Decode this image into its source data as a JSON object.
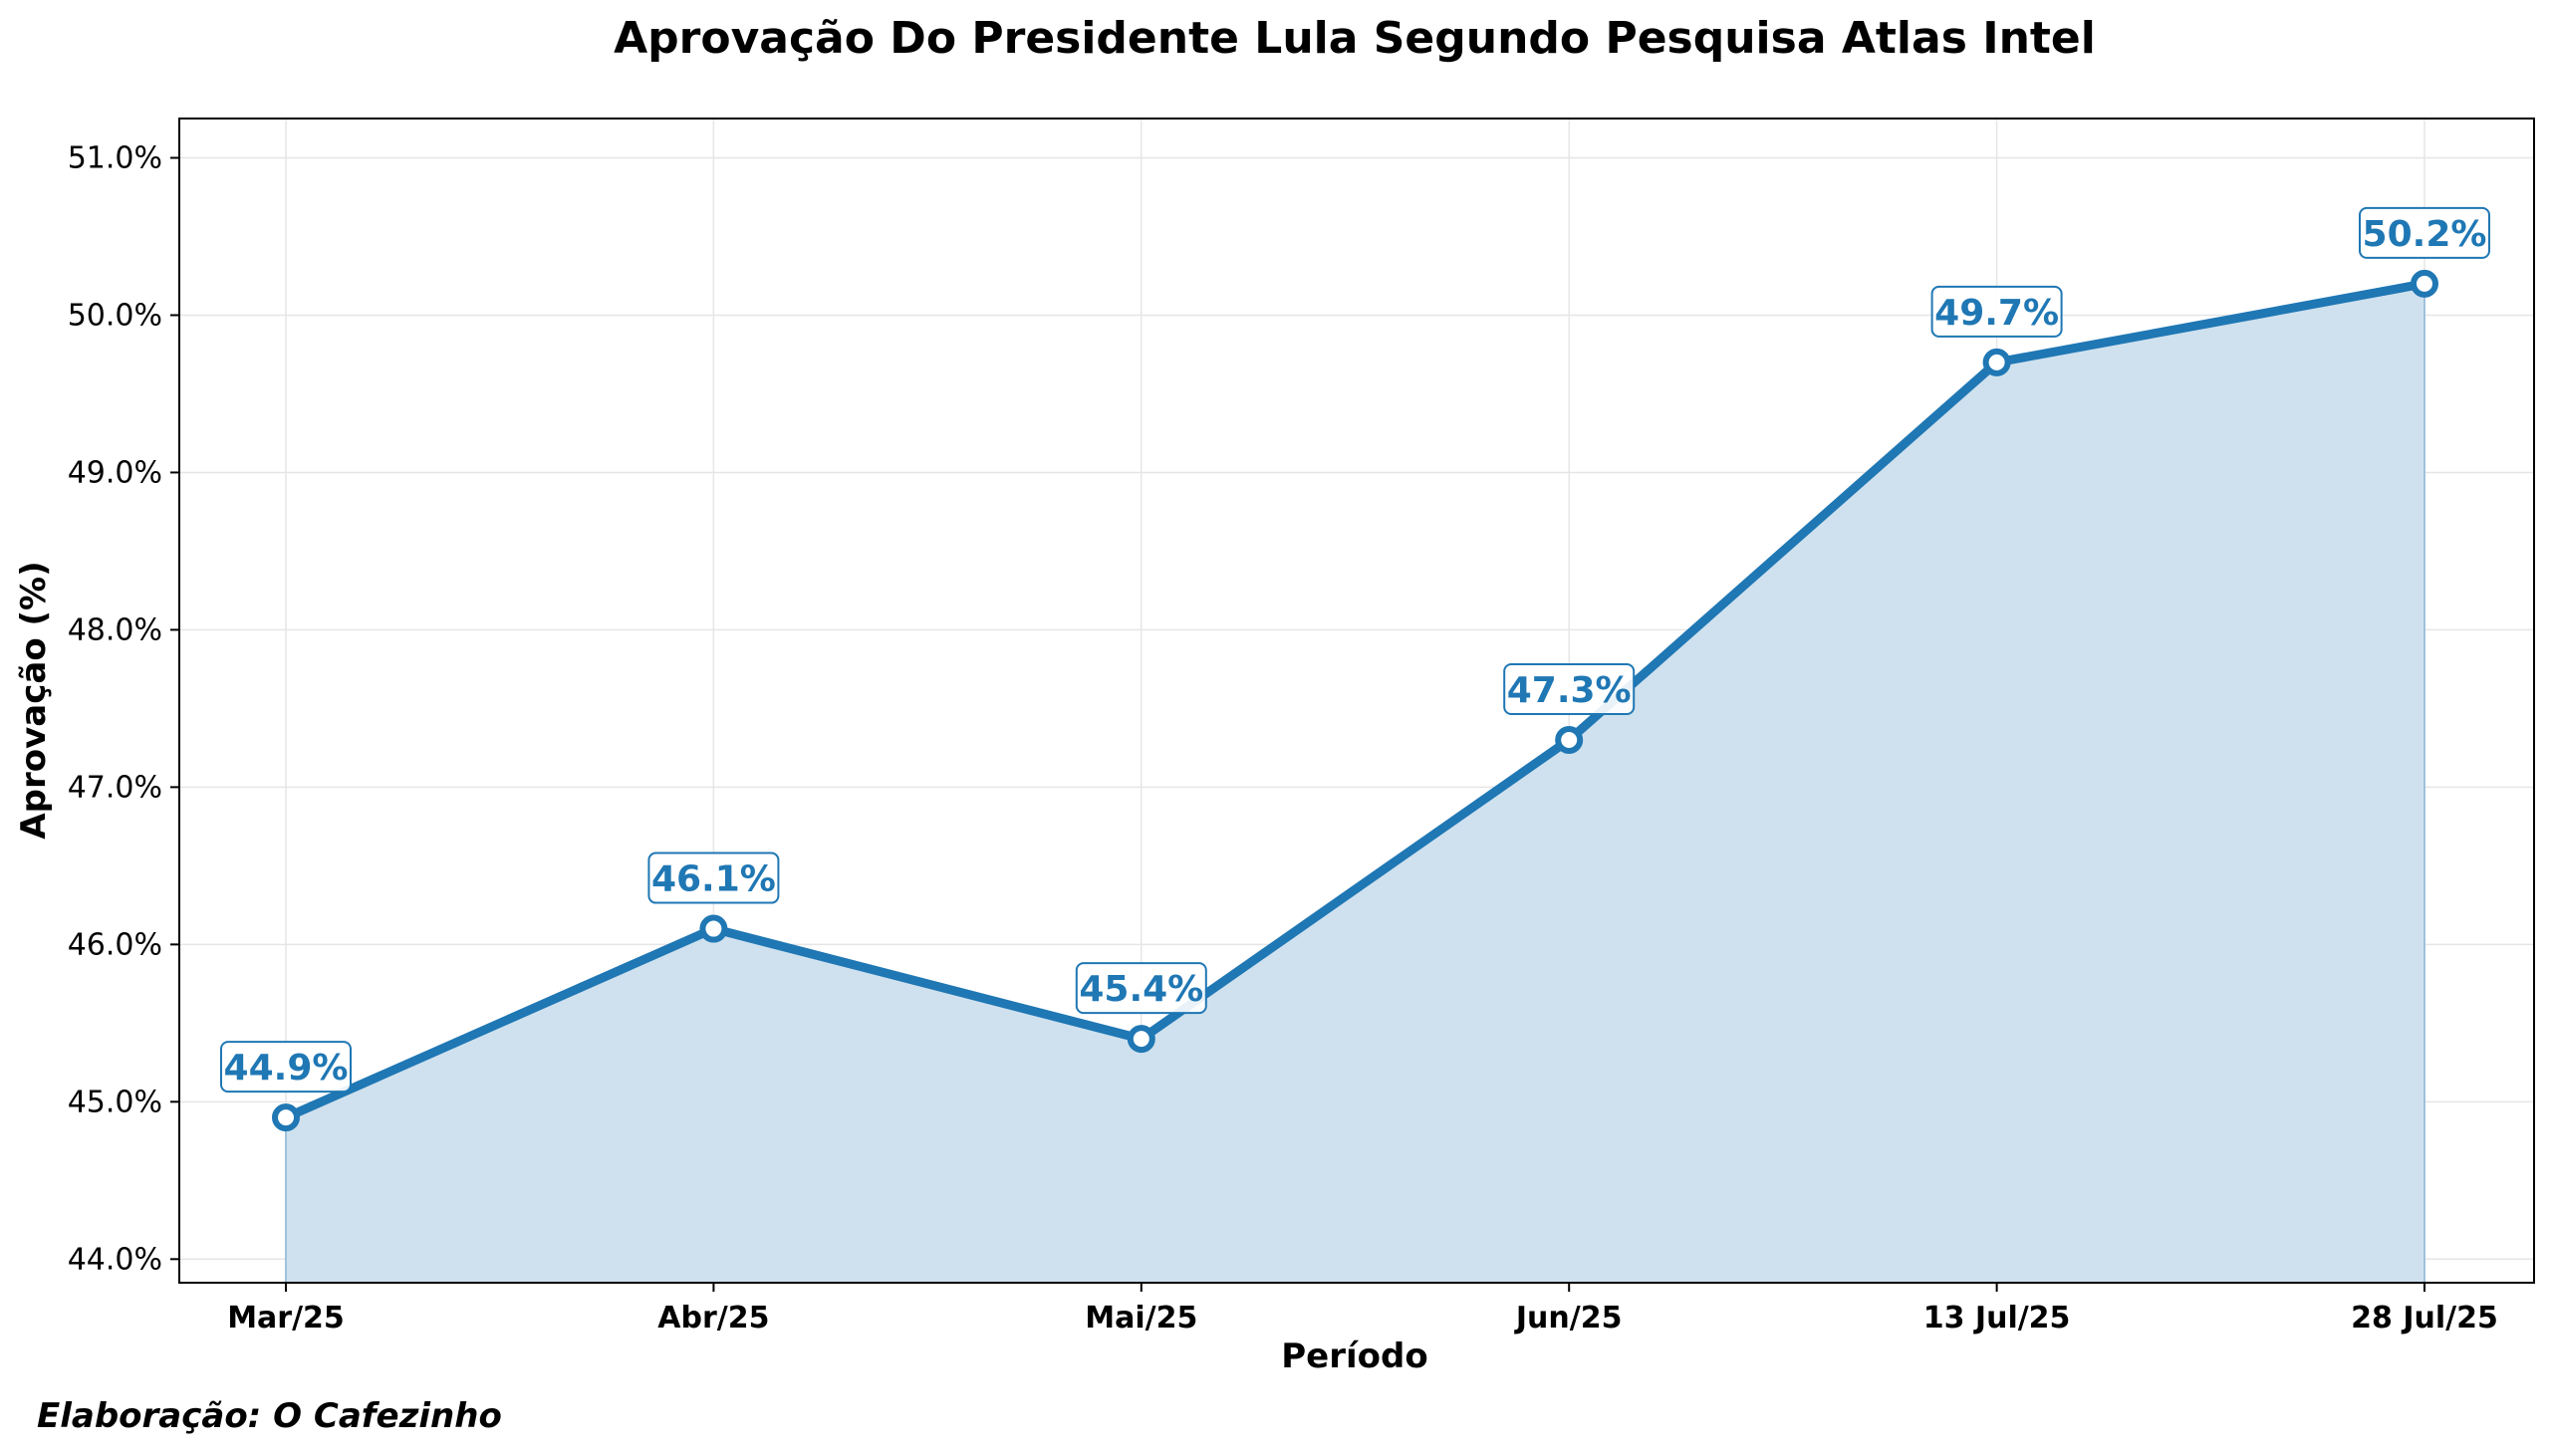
{
  "colors": {
    "series": "#1f77b4",
    "fill": "#cfe1ee",
    "background": "#ffffff",
    "axes": "#000000",
    "grid": "#e6e6e6"
  },
  "credit": "Elaboração: O Cafezinho",
  "chart_data": {
    "type": "line",
    "title": "Aprovação Do Presidente Lula Segundo Pesquisa Atlas Intel",
    "xlabel": "Período",
    "ylabel": "Aprovação (%)",
    "categories": [
      "Mar/25",
      "Abr/25",
      "Mai/25",
      "Jun/25",
      "13 Jul/25",
      "28 Jul/25"
    ],
    "series": [
      {
        "values": [
          44.9,
          46.1,
          45.4,
          47.3,
          49.7,
          50.2
        ],
        "data_labels": [
          "44.9%",
          "46.1%",
          "45.4%",
          "47.3%",
          "49.7%",
          "50.2%"
        ]
      }
    ],
    "ylim": [
      43.85,
      51.25
    ],
    "yticks": [
      44.0,
      45.0,
      46.0,
      47.0,
      48.0,
      49.0,
      50.0,
      51.0
    ],
    "ytick_labels": [
      "44.0%",
      "45.0%",
      "46.0%",
      "47.0%",
      "48.0%",
      "49.0%",
      "50.0%",
      "51.0%"
    ],
    "grid": true,
    "area_fill": true,
    "legend": "none"
  }
}
